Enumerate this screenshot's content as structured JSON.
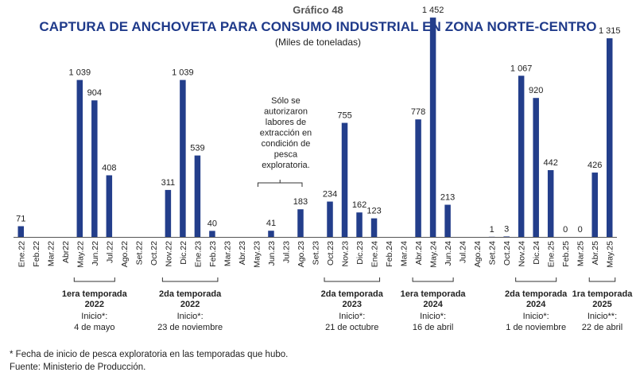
{
  "header": {
    "chart_number": "Gráfico 48",
    "title": "CAPTURA DE ANCHOVETA PARA CONSUMO INDUSTRIAL EN ZONA NORTE-CENTRO",
    "subtitle": "(Miles de toneladas)"
  },
  "colors": {
    "bar": "#233e8b",
    "title": "#1f3a8a",
    "text": "#222222"
  },
  "chart_data": {
    "type": "bar",
    "title": "CAPTURA DE ANCHOVETA PARA CONSUMO INDUSTRIAL EN ZONA NORTE-CENTRO",
    "ylabel": "(Miles de toneladas)",
    "grid": false,
    "categories": [
      "Ene.22",
      "Feb.22",
      "Mar.22",
      "Abr22",
      "May.22",
      "Jun.22",
      "Jul.22",
      "Ago.22",
      "Set.22",
      "Oct.22",
      "Nov.22",
      "Dic.22",
      "Ene.23",
      "Feb.23",
      "Mar.23",
      "Abr.23",
      "May.23",
      "Jun.23",
      "Jul.23",
      "Ago.23",
      "Set.23",
      "Oct.23",
      "Nov.23",
      "Dic.23",
      "Ene.24",
      "Feb.24",
      "Mar.24",
      "Abr.24",
      "May.24",
      "Jun.24",
      "Jul.24",
      "Ago.24",
      "Set.24",
      "Oct.24",
      "Nov.24",
      "Dic.24",
      "Ene.25",
      "Feb.25",
      "Mar.25",
      "Abr.25",
      "May.25"
    ],
    "values": [
      71,
      null,
      null,
      null,
      1039,
      904,
      408,
      null,
      null,
      null,
      311,
      1039,
      539,
      40,
      null,
      null,
      null,
      41,
      null,
      183,
      null,
      234,
      755,
      162,
      123,
      null,
      null,
      778,
      1452,
      213,
      null,
      null,
      1,
      3,
      1067,
      920,
      442,
      0,
      0,
      426,
      1315
    ],
    "data_labels": [
      "71",
      "",
      "",
      "",
      "1 039",
      "904",
      "408",
      "",
      "",
      "",
      "311",
      "1 039",
      "539",
      "40",
      "",
      "",
      "",
      "41",
      "",
      "183",
      "",
      "234",
      "755",
      "162",
      "123",
      "",
      "",
      "778",
      "1 452",
      "213",
      "",
      "",
      "1",
      "3",
      "1 067",
      "920",
      "442",
      "0",
      "0",
      "426",
      "1 315"
    ],
    "ylim": [
      0,
      1500
    ],
    "annotation": [
      "Sólo se",
      "autorizaron",
      "labores de",
      "extracción en",
      "condición de",
      "pesca",
      "exploratoria."
    ],
    "seasons": [
      {
        "title": [
          "1era temporada",
          "2022"
        ],
        "start": [
          "Inicio*:",
          "4 de mayo"
        ],
        "from": 4,
        "to": 6
      },
      {
        "title": [
          "2da temporada",
          "2022"
        ],
        "start": [
          "Inicio*:",
          "23 de noviembre"
        ],
        "from": 10,
        "to": 13
      },
      {
        "title": [
          "2da temporada",
          "2023"
        ],
        "start": [
          "Inicio*:",
          "21 de octubre"
        ],
        "from": 21,
        "to": 24
      },
      {
        "title": [
          "1era temporada",
          "2024"
        ],
        "start": [
          "Inicio*:",
          "16 de abril"
        ],
        "from": 27,
        "to": 29
      },
      {
        "title": [
          "2da temporada",
          "2024"
        ],
        "start": [
          "Inicio*:",
          "1 de noviembre"
        ],
        "from": 34,
        "to": 36
      },
      {
        "title": [
          "1ra temporada",
          "2025"
        ],
        "start": [
          "Inicio**:",
          "22 de abril"
        ],
        "from": 39,
        "to": 40
      }
    ]
  },
  "footnotes": {
    "note": "* Fecha de inicio de pesca exploratoria en las temporadas que hubo.",
    "source": "Fuente: Ministerio de Producción."
  }
}
